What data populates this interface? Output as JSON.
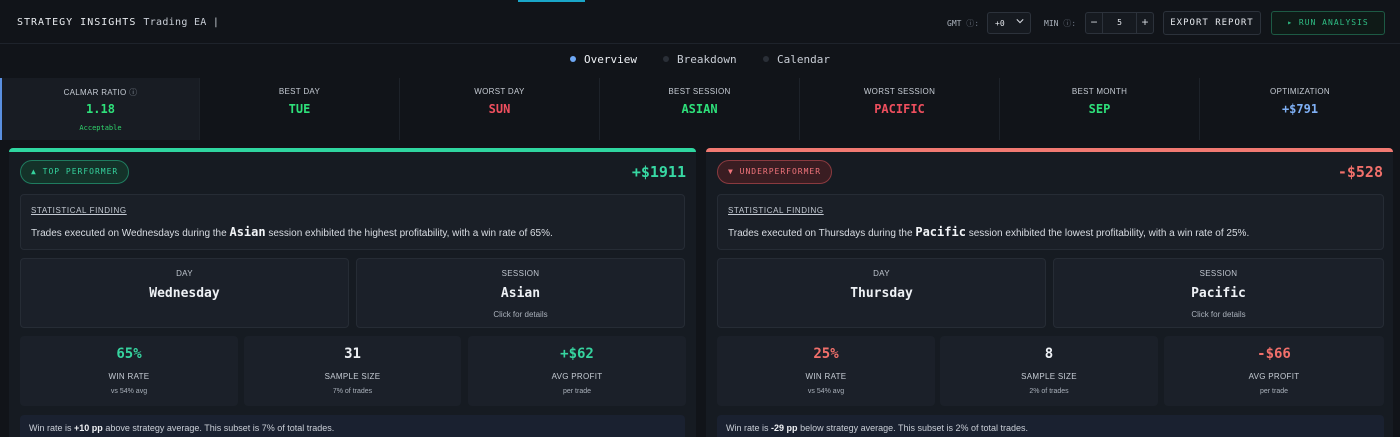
{
  "header": {
    "brand": "STRATEGY INSIGHTS",
    "subtitle": "Trading EA |",
    "gmt_label": "GMT",
    "gmt_value": "+0",
    "min_label": "MIN",
    "min_value": "5",
    "minus": "−",
    "plus": "+",
    "export_label": "EXPORT REPORT",
    "run_label": "▸ RUN ANALYSIS",
    "accent_color": "#1aa6c8"
  },
  "tabs": [
    {
      "label": "Overview",
      "active": true
    },
    {
      "label": "Breakdown",
      "active": false
    },
    {
      "label": "Calendar",
      "active": false
    }
  ],
  "metrics": [
    {
      "label": "CALMAR RATIO",
      "value": "1.18",
      "note": "Acceptable",
      "tone": "green"
    },
    {
      "label": "BEST DAY",
      "value": "TUE",
      "tone": "green"
    },
    {
      "label": "WORST DAY",
      "value": "SUN",
      "tone": "red"
    },
    {
      "label": "BEST SESSION",
      "value": "ASIAN",
      "tone": "green"
    },
    {
      "label": "WORST SESSION",
      "value": "PACIFIC",
      "tone": "red"
    },
    {
      "label": "BEST MONTH",
      "value": "SEP",
      "tone": "green"
    },
    {
      "label": "OPTIMIZATION",
      "value": "+$791",
      "tone": "blue"
    }
  ],
  "cards": [
    {
      "badge": "▲ TOP PERFORMER",
      "headline": "+$1911",
      "finding_title": "STATISTICAL FINDING",
      "finding_pre": "Trades executed on Wednesdays during the",
      "finding_em": "Asian",
      "finding_post": "session exhibited the highest profitability, with a win rate of 65%.",
      "day_label": "DAY",
      "day_value": "Wednesday",
      "session_label": "SESSION",
      "session_value": "Asian",
      "session_note": "Click for details",
      "stats": [
        {
          "value": "65%",
          "label": "WIN RATE",
          "note": "vs 54% avg",
          "color": "#36d49f"
        },
        {
          "value": "31",
          "label": "SAMPLE SIZE",
          "note": "7% of trades",
          "color": "#eef1f5"
        },
        {
          "value": "+$62",
          "label": "AVG PROFIT",
          "note": "per trade",
          "color": "#36d49f"
        }
      ],
      "footer_pre": "Win rate is",
      "footer_bold": "+10 pp",
      "footer_post": "above strategy average. This subset is 7% of total trades.",
      "accent_color": "#2fd6a0"
    },
    {
      "badge": "▼ UNDERPERFORMER",
      "headline": "-$528",
      "finding_title": "STATISTICAL FINDING",
      "finding_pre": "Trades executed on Thursdays during the",
      "finding_em": "Pacific",
      "finding_post": "session exhibited the lowest profitability, with a win rate of 25%.",
      "day_label": "DAY",
      "day_value": "Thursday",
      "session_label": "SESSION",
      "session_value": "Pacific",
      "session_note": "Click for details",
      "stats": [
        {
          "value": "25%",
          "label": "WIN RATE",
          "note": "vs 54% avg",
          "color": "#f2706b"
        },
        {
          "value": "8",
          "label": "SAMPLE SIZE",
          "note": "2% of trades",
          "color": "#eef1f5"
        },
        {
          "value": "-$66",
          "label": "AVG PROFIT",
          "note": "per trade",
          "color": "#f2706b"
        }
      ],
      "footer_pre": "Win rate is",
      "footer_bold": "-29 pp",
      "footer_post": "below strategy average. This subset is 2% of total trades.",
      "accent_color": "#f27a72"
    }
  ]
}
